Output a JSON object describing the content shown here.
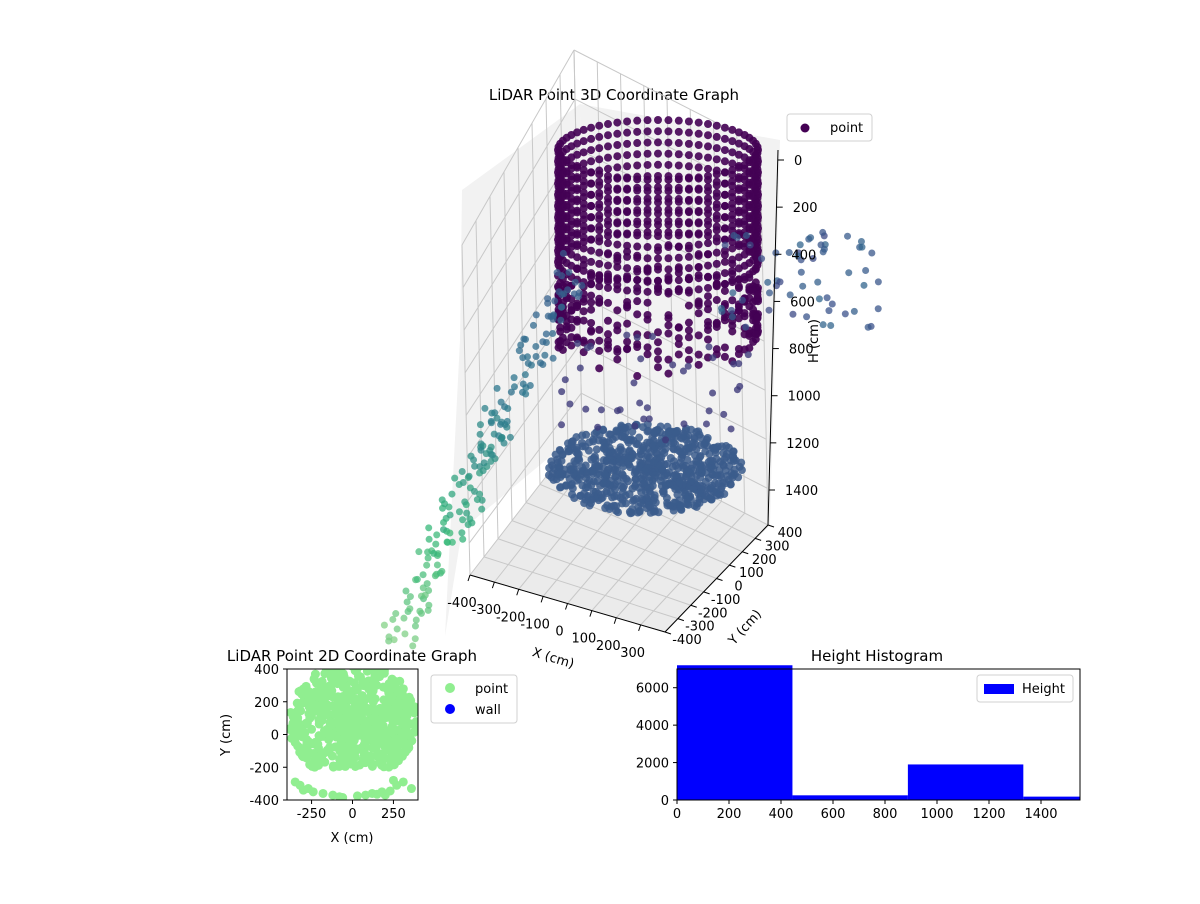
{
  "figure": {
    "background": "#ffffff"
  },
  "chart_data": [
    {
      "type": "scatter",
      "subtype": "3d",
      "title": "LiDAR Point 3D Coordinate Graph",
      "xlabel": "X (cm)",
      "ylabel": "Y (cm)",
      "zlabel": "H (cm)",
      "xlim": [
        -400,
        400
      ],
      "ylim": [
        -400,
        400
      ],
      "zlim": [
        0,
        1550
      ],
      "z_inverted": true,
      "x_ticks": [
        "-400",
        "-300",
        "-200",
        "-100",
        "0",
        "100",
        "200",
        "300"
      ],
      "y_ticks": [
        "-400",
        "-300",
        "-200",
        "-100",
        "0",
        "100",
        "200",
        "300",
        "400"
      ],
      "z_ticks": [
        "0",
        "200",
        "400",
        "600",
        "800",
        "1000",
        "1200",
        "1400"
      ],
      "colormap": "viridis",
      "grid": true,
      "legend": {
        "placement": "top-right",
        "entries": [
          {
            "name": "point",
            "color": "#440154"
          }
        ]
      },
      "structures": [
        {
          "kind": "cylinder-wall",
          "radius": 380,
          "h_range": [
            0,
            600
          ],
          "color": "#440154"
        },
        {
          "kind": "floor-disc",
          "radius": 380,
          "h": 1400,
          "color": "#3b5c8c"
        }
      ]
    },
    {
      "type": "scatter",
      "title": "LiDAR Point 2D Coordinate Graph",
      "xlabel": "X (cm)",
      "ylabel": "Y (cm)",
      "xlim": [
        -400,
        400
      ],
      "ylim": [
        -400,
        400
      ],
      "x_ticks": [
        "-250",
        "0",
        "250"
      ],
      "y_ticks": [
        "-400",
        "-200",
        "0",
        "200",
        "400"
      ],
      "legend": {
        "placement": "outside-right",
        "entries": [
          {
            "name": "point",
            "color": "#90ee90"
          },
          {
            "name": "wall",
            "color": "#0000ff"
          }
        ]
      },
      "series": [
        {
          "name": "point",
          "color": "#90ee90",
          "x": [
            -350,
            -320,
            -270,
            -240,
            -180,
            -120,
            -80,
            30,
            80,
            120,
            180,
            230,
            270,
            310,
            360,
            250,
            200,
            -300,
            -60,
            150
          ],
          "y": [
            -290,
            -310,
            -330,
            -350,
            -360,
            -370,
            -380,
            -375,
            -370,
            -360,
            -350,
            -345,
            -310,
            -290,
            -330,
            -280,
            -370,
            -340,
            -385,
            -365
          ]
        }
      ]
    },
    {
      "type": "bar",
      "subtype": "histogram",
      "title": "Height Histogram",
      "xlim": [
        0,
        1550
      ],
      "ylim": [
        0,
        7000
      ],
      "x_ticks": [
        "0",
        "200",
        "400",
        "600",
        "800",
        "1000",
        "1200",
        "1400"
      ],
      "y_ticks": [
        "0",
        "2000",
        "4000",
        "6000"
      ],
      "legend": {
        "placement": "top-right",
        "entries": [
          {
            "name": "Height",
            "color": "#0000ff"
          }
        ]
      },
      "series": [
        {
          "name": "Height",
          "color": "#0000ff",
          "bins": [
            [
              0,
              444
            ],
            [
              444,
              888
            ],
            [
              888,
              1332
            ],
            [
              1332,
              1550
            ]
          ],
          "values": [
            7200,
            250,
            1900,
            180
          ]
        }
      ]
    }
  ]
}
